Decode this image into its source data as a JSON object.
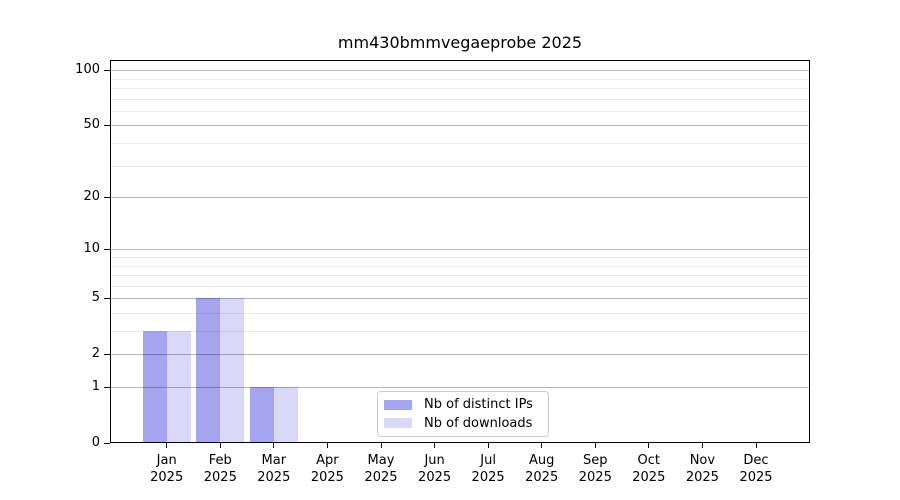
{
  "chart_data": {
    "type": "bar",
    "title": "mm430bmmvegaeprobe 2025",
    "categories": [
      "Jan",
      "Feb",
      "Mar",
      "Apr",
      "May",
      "Jun",
      "Jul",
      "Aug",
      "Sep",
      "Oct",
      "Nov",
      "Dec"
    ],
    "category_year": "2025",
    "series": [
      {
        "name": "Nb of distinct IPs",
        "color": "#a5a5ef",
        "values": [
          3,
          5,
          1,
          0,
          0,
          0,
          0,
          0,
          0,
          0,
          0,
          0
        ]
      },
      {
        "name": "Nb of downloads",
        "color": "#d9d9f7",
        "values": [
          3,
          5,
          1,
          0,
          0,
          0,
          0,
          0,
          0,
          0,
          0,
          0
        ]
      }
    ],
    "xlabel": "",
    "ylabel": "",
    "y_scale": "log1p",
    "y_ticks": [
      100,
      50,
      20,
      10,
      5,
      2,
      1,
      0
    ],
    "y_minor_ticks": [
      3,
      4,
      6,
      7,
      8,
      9,
      30,
      40,
      60,
      70,
      80,
      90
    ],
    "ylim": [
      0,
      114
    ],
    "grid": "on",
    "legend_position": "lower center"
  }
}
